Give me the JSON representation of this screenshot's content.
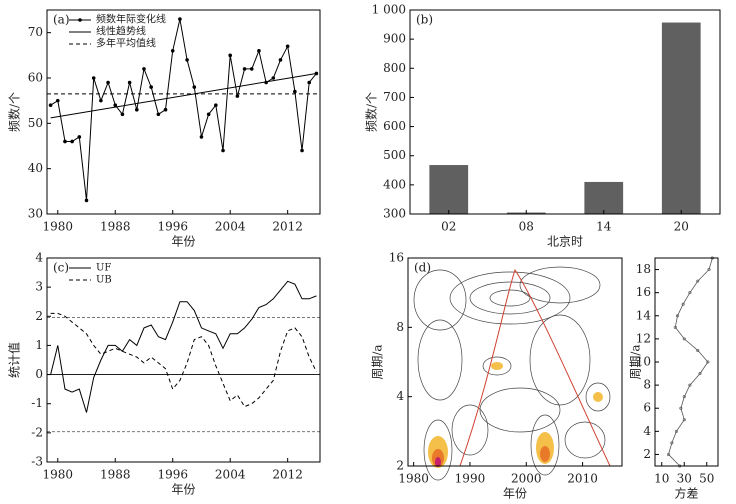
{
  "chart_data": [
    {
      "type": "line",
      "panel_label": "(a)",
      "xlabel": "年份",
      "ylabel": "频数/个",
      "x": [
        1979,
        1980,
        1981,
        1982,
        1983,
        1984,
        1985,
        1986,
        1987,
        1988,
        1989,
        1990,
        1991,
        1992,
        1993,
        1994,
        1995,
        1996,
        1997,
        1998,
        1999,
        2000,
        2001,
        2002,
        2003,
        2004,
        2005,
        2006,
        2007,
        2008,
        2009,
        2010,
        2011,
        2012,
        2013,
        2014,
        2015,
        2016
      ],
      "xlim": [
        1978.5,
        2016.5
      ],
      "xticks": [
        1980,
        1988,
        1996,
        2004,
        2012
      ],
      "ylim": [
        30,
        75
      ],
      "yticks": [
        30,
        40,
        50,
        60,
        70
      ],
      "legend": "upper left",
      "series": [
        {
          "name": "频数年际变化线",
          "color": "#000000",
          "marker": true,
          "values": [
            54,
            55,
            46,
            46,
            47,
            33,
            60,
            55,
            59,
            54,
            52,
            59,
            53,
            62,
            58,
            52,
            53,
            66,
            73,
            64,
            58,
            47,
            52,
            54,
            44,
            65,
            56,
            62,
            62,
            66,
            59,
            60,
            64,
            67,
            57,
            44,
            59,
            61
          ]
        },
        {
          "name": "线性趋势线",
          "color": "#000000",
          "x": [
            1979,
            2016
          ],
          "values": [
            51.2,
            61
          ]
        },
        {
          "name": "多年平均值线",
          "color": "#000000",
          "dash": true,
          "x": [
            1978.5,
            2016.5
          ],
          "values": [
            56.5,
            56.5
          ]
        }
      ]
    },
    {
      "type": "bar",
      "panel_label": "(b)",
      "xlabel": "北京时",
      "ylabel": "频数/个",
      "categories": [
        "02",
        "08",
        "14",
        "20"
      ],
      "values": [
        468,
        305,
        410,
        957
      ],
      "color": "#606060",
      "ylim": [
        300,
        1000
      ],
      "yticks": [
        300,
        400,
        500,
        600,
        700,
        800,
        900,
        {
          "value": 1000,
          "label": "1 000"
        }
      ]
    },
    {
      "type": "line",
      "panel_label": "(c)",
      "xlabel": "年份",
      "ylabel": "统计值",
      "x": [
        1979,
        1980,
        1981,
        1982,
        1983,
        1984,
        1985,
        1986,
        1987,
        1988,
        1989,
        1990,
        1991,
        1992,
        1993,
        1994,
        1995,
        1996,
        1997,
        1998,
        1999,
        2000,
        2001,
        2002,
        2003,
        2004,
        2005,
        2006,
        2007,
        2008,
        2009,
        2010,
        2011,
        2012,
        2013,
        2014,
        2015,
        2016
      ],
      "xlim": [
        1978.5,
        2016.5
      ],
      "xticks": [
        1980,
        1988,
        1996,
        2004,
        2012
      ],
      "ylim": [
        -3,
        4
      ],
      "yticks": [
        -3,
        -2,
        -1,
        0,
        1,
        2,
        3,
        4
      ],
      "legend": "upper left",
      "hlines": [
        {
          "value": 1.96,
          "dash": true
        },
        {
          "value": -1.96,
          "dash": true
        },
        {
          "value": 0
        }
      ],
      "series": [
        {
          "name": "UF",
          "color": "#000000",
          "values": [
            0,
            1,
            -0.5,
            -0.6,
            -0.5,
            -1.3,
            -0.1,
            0.5,
            1.0,
            1.0,
            0.8,
            1.2,
            1.0,
            1.6,
            1.7,
            1.3,
            1.2,
            1.8,
            2.5,
            2.5,
            2.2,
            1.6,
            1.5,
            1.4,
            0.9,
            1.4,
            1.4,
            1.6,
            1.9,
            2.3,
            2.4,
            2.6,
            2.9,
            3.2,
            3.1,
            2.6,
            2.6,
            2.7
          ]
        },
        {
          "name": "UB",
          "color": "#000000",
          "dash": true,
          "values": [
            2.1,
            2.1,
            2.0,
            1.8,
            1.6,
            1.4,
            1.0,
            0.7,
            0.8,
            0.9,
            0.8,
            0.7,
            0.6,
            0.4,
            0.6,
            0.4,
            0.2,
            -0.5,
            -0.2,
            0.4,
            1.2,
            1.3,
            1.0,
            0.3,
            -0.3,
            -0.9,
            -0.7,
            -1.1,
            -1.0,
            -0.8,
            -0.5,
            -0.2,
            0.8,
            1.5,
            1.6,
            1.3,
            0.6,
            0.1
          ]
        }
      ]
    },
    {
      "type": "contour",
      "panel_label": "(d)",
      "xlabel": "年份",
      "ylabel": "周期/a",
      "xlim": [
        1979,
        2017
      ],
      "xticks": [
        1980,
        1990,
        2000,
        2010
      ],
      "ylim": [
        2,
        16
      ],
      "ylog": true,
      "yticks": [
        2,
        4,
        8,
        16
      ]
    },
    {
      "type": "profile",
      "xlabel": "方差",
      "ylabel": "周期/a",
      "xlim": [
        4,
        60
      ],
      "xticks": [
        10,
        30,
        50
      ],
      "ylim": [
        1,
        19
      ],
      "yticks": [
        2,
        4,
        6,
        8,
        10,
        12,
        14,
        16,
        18
      ],
      "periods": [
        1,
        2,
        3,
        4,
        5,
        6,
        7,
        8,
        9,
        10,
        11,
        12,
        13,
        14,
        15,
        16,
        17,
        18,
        19
      ],
      "variance": [
        26,
        16,
        19,
        23,
        30,
        27,
        30,
        35,
        44,
        51,
        42,
        30,
        22,
        24,
        29,
        35,
        42,
        52,
        55
      ],
      "color": "#555555"
    }
  ]
}
